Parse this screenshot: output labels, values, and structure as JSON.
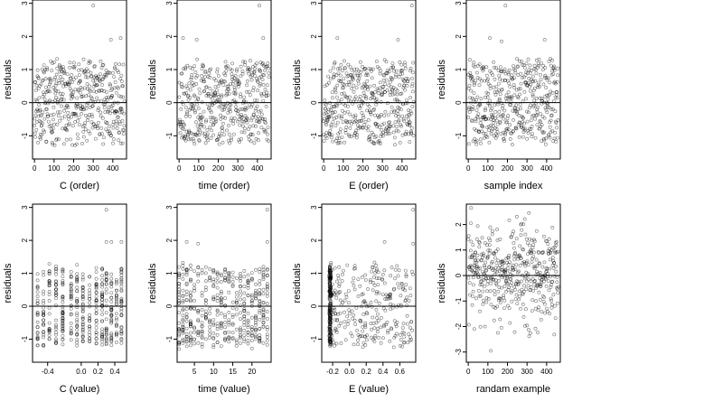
{
  "chart_data": [
    {
      "type": "scatter",
      "xlabel": "C (order)",
      "ylabel": "residuals",
      "xlim": [
        -10,
        470
      ],
      "ylim": [
        -1.7,
        3.1
      ],
      "xticks": [
        0,
        100,
        200,
        300,
        400
      ],
      "yticks": [
        -1,
        0,
        1,
        2,
        3
      ],
      "x_kind": "index",
      "x_labels": [
        "0",
        "100",
        "200",
        "300",
        "400"
      ],
      "y_labels": [
        "-1",
        "0",
        "1",
        "2",
        "3"
      ],
      "reference_line_y": 0,
      "grid": false,
      "n_points": 460,
      "seed": 11,
      "outliers": [
        {
          "x": 300,
          "y": 2.93
        },
        {
          "x": 440,
          "y": 1.95
        },
        {
          "x": 390,
          "y": 1.9
        }
      ]
    },
    {
      "type": "scatter",
      "xlabel": "time (order)",
      "ylabel": "residuals",
      "xlim": [
        -10,
        470
      ],
      "ylim": [
        -1.7,
        3.1
      ],
      "xticks": [
        0,
        100,
        200,
        300,
        400
      ],
      "yticks": [
        -1,
        0,
        1,
        2,
        3
      ],
      "x_kind": "index",
      "x_labels": [
        "0",
        "100",
        "200",
        "300",
        "400"
      ],
      "y_labels": [
        "-1",
        "0",
        "1",
        "2",
        "3"
      ],
      "reference_line_y": 0,
      "grid": false,
      "n_points": 460,
      "seed": 23,
      "outliers": [
        {
          "x": 410,
          "y": 2.93
        },
        {
          "x": 20,
          "y": 1.95
        },
        {
          "x": 90,
          "y": 1.9
        },
        {
          "x": 430,
          "y": 1.95
        }
      ]
    },
    {
      "type": "scatter",
      "xlabel": "E (order)",
      "ylabel": "residuals",
      "xlim": [
        -10,
        470
      ],
      "ylim": [
        -1.7,
        3.1
      ],
      "xticks": [
        0,
        100,
        200,
        300,
        400
      ],
      "yticks": [
        -1,
        0,
        1,
        2,
        3
      ],
      "x_kind": "index",
      "x_labels": [
        "0",
        "100",
        "200",
        "300",
        "400"
      ],
      "y_labels": [
        "-1",
        "0",
        "1",
        "2",
        "3"
      ],
      "reference_line_y": 0,
      "grid": false,
      "n_points": 460,
      "seed": 37,
      "outliers": [
        {
          "x": 450,
          "y": 2.93
        },
        {
          "x": 70,
          "y": 1.95
        },
        {
          "x": 380,
          "y": 1.9
        }
      ]
    },
    {
      "type": "scatter",
      "xlabel": "sample index",
      "ylabel": "residuals",
      "xlim": [
        -10,
        470
      ],
      "ylim": [
        -1.7,
        3.1
      ],
      "xticks": [
        0,
        100,
        200,
        300,
        400
      ],
      "yticks": [
        -1,
        0,
        1,
        2,
        3
      ],
      "x_kind": "index",
      "x_labels": [
        "0",
        "100",
        "200",
        "300",
        "400"
      ],
      "y_labels": [
        "-1",
        "0",
        "1",
        "2",
        "3"
      ],
      "reference_line_y": 0,
      "grid": false,
      "n_points": 460,
      "seed": 41,
      "outliers": [
        {
          "x": 190,
          "y": 2.93
        },
        {
          "x": 110,
          "y": 1.95
        },
        {
          "x": 390,
          "y": 1.9
        },
        {
          "x": 170,
          "y": 1.85
        }
      ]
    },
    {
      "type": "scatter",
      "xlabel": "C (value)",
      "ylabel": "residuals",
      "xlim": [
        -0.58,
        0.54
      ],
      "ylim": [
        -1.7,
        3.1
      ],
      "xticks": [
        -0.4,
        0.0,
        0.2,
        0.4
      ],
      "yticks": [
        -1,
        0,
        1,
        2,
        3
      ],
      "x_kind": "discrete",
      "x_levels": [
        -0.52,
        -0.45,
        -0.38,
        -0.3,
        -0.22,
        -0.12,
        -0.05,
        0.02,
        0.1,
        0.18,
        0.25,
        0.3,
        0.36,
        0.42,
        0.48
      ],
      "x_labels": [
        "-0.4",
        "0.0",
        "0.2",
        "0.4"
      ],
      "y_labels": [
        "-1",
        "0",
        "1",
        "2",
        "3"
      ],
      "reference_line_y": 0,
      "grid": false,
      "n_points": 460,
      "seed": 53,
      "outliers": [
        {
          "x": 0.3,
          "y": 2.93
        },
        {
          "x": 0.3,
          "y": 1.95
        },
        {
          "x": 0.36,
          "y": 1.95
        },
        {
          "x": 0.48,
          "y": 1.95
        }
      ]
    },
    {
      "type": "scatter",
      "xlabel": "time (value)",
      "ylabel": "residuals",
      "xlim": [
        0.5,
        25
      ],
      "ylim": [
        -1.7,
        3.1
      ],
      "xticks": [
        5,
        10,
        15,
        20
      ],
      "yticks": [
        -1,
        0,
        1,
        2,
        3
      ],
      "x_kind": "discrete",
      "x_levels": [
        1,
        2,
        3,
        4,
        5,
        6,
        7,
        8,
        9,
        10,
        11,
        12,
        13,
        14,
        15,
        16,
        17,
        18,
        19,
        20,
        21,
        22,
        23,
        24
      ],
      "x_labels": [
        "5",
        "10",
        "15",
        "20"
      ],
      "y_labels": [
        "-1",
        "0",
        "1",
        "2",
        "3"
      ],
      "reference_line_y": 0,
      "grid": false,
      "n_points": 460,
      "seed": 67,
      "outliers": [
        {
          "x": 24,
          "y": 2.93
        },
        {
          "x": 3,
          "y": 1.95
        },
        {
          "x": 6,
          "y": 1.9
        },
        {
          "x": 24,
          "y": 1.95
        }
      ]
    },
    {
      "type": "scatter",
      "xlabel": "E (value)",
      "ylabel": "residuals",
      "xlim": [
        -0.33,
        0.79
      ],
      "ylim": [
        -1.7,
        3.1
      ],
      "xticks": [
        -0.2,
        0.0,
        0.2,
        0.4,
        0.6
      ],
      "yticks": [
        -1,
        0,
        1,
        2,
        3
      ],
      "x_kind": "clustered",
      "cluster_at": -0.23,
      "cluster_fraction": 0.45,
      "x_labels": [
        "-0.2",
        "0.0",
        "0.2",
        "0.4",
        "0.6"
      ],
      "y_labels": [
        "-1",
        "0",
        "1",
        "2",
        "3"
      ],
      "reference_line_y": 0,
      "grid": false,
      "n_points": 460,
      "seed": 79,
      "outliers": [
        {
          "x": 0.76,
          "y": 2.93
        },
        {
          "x": 0.42,
          "y": 1.95
        },
        {
          "x": 0.76,
          "y": 1.9
        }
      ]
    },
    {
      "type": "scatter",
      "xlabel": "randam example",
      "ylabel": "residuals",
      "xlim": [
        -10,
        470
      ],
      "ylim": [
        -3.4,
        2.8
      ],
      "xticks": [
        0,
        100,
        200,
        300,
        400
      ],
      "yticks": [
        -3,
        -2,
        -1,
        0,
        1,
        2
      ],
      "x_kind": "index",
      "x_labels": [
        "0",
        "100",
        "200",
        "300",
        "400"
      ],
      "y_labels": [
        "-3",
        "-2",
        "-1",
        "0",
        "1",
        "2"
      ],
      "reference_line_y": 0,
      "grid": false,
      "n_points": 460,
      "seed": 97,
      "y_spread": "normal",
      "outliers": []
    }
  ]
}
